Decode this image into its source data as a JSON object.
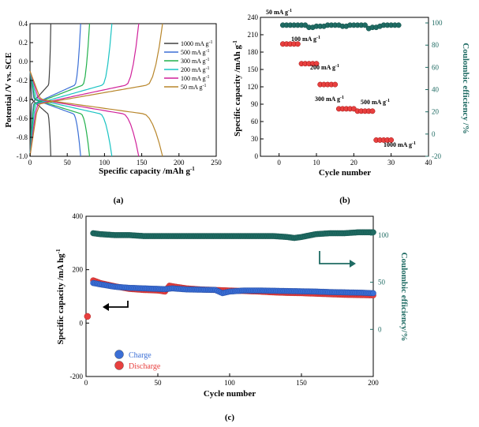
{
  "chart_data": [
    {
      "panel": "a",
      "panel_label": "(a)",
      "type": "line",
      "xlabel": "Specific capacity /mAh g",
      "xlabel_sup": "-1",
      "ylabel": "Potential /V vs. SCE",
      "xlim": [
        0,
        250
      ],
      "ylim": [
        -1.0,
        0.4
      ],
      "xticks": [
        0,
        50,
        100,
        150,
        200,
        250
      ],
      "yticks": [
        -1.0,
        -0.8,
        -0.6,
        -0.4,
        -0.2,
        0.0,
        0.2,
        0.4
      ],
      "legend_position": "right",
      "series": [
        {
          "name": "1000 mA g",
          "name_sup": "-1",
          "color": "#404040",
          "cap": 28
        },
        {
          "name": "500 mA g",
          "name_sup": "-1",
          "color": "#3b6fd6",
          "cap": 68
        },
        {
          "name": "300 mA g",
          "name_sup": "-1",
          "color": "#22b14c",
          "cap": 80
        },
        {
          "name": "200 mA g",
          "name_sup": "-1",
          "color": "#19c3c3",
          "cap": 110
        },
        {
          "name": "100 mA g",
          "name_sup": "-1",
          "color": "#d0219a",
          "cap": 146
        },
        {
          "name": "50 mA g",
          "name_sup": "-1",
          "color": "#b8862b",
          "cap": 178
        }
      ]
    },
    {
      "panel": "b",
      "panel_label": "(b)",
      "type": "scatter",
      "xlabel": "Cycle number",
      "ylabel": "Specific capacity /mAh g",
      "ylabel_sup": "-1",
      "y2label": "Coulombic efficiency /%",
      "xlim": [
        -5,
        40
      ],
      "ylim": [
        0,
        240
      ],
      "y2lim": [
        -20,
        105
      ],
      "xticks": [
        0,
        10,
        20,
        30,
        40
      ],
      "yticks": [
        0,
        30,
        60,
        90,
        120,
        150,
        180,
        210,
        240
      ],
      "y2ticks": [
        -20,
        0,
        20,
        40,
        60,
        80,
        100
      ],
      "capacity_groups": [
        {
          "label": "50 mA g",
          "label_sup": "-1",
          "cycles": [
            1,
            2,
            3,
            4,
            5
          ],
          "value": 194
        },
        {
          "label": "100 mA g",
          "label_sup": "-1",
          "cycles": [
            6,
            7,
            8,
            9,
            10
          ],
          "value": 160
        },
        {
          "label": "200 mA g",
          "label_sup": "-1",
          "cycles": [
            11,
            12,
            13,
            14,
            15
          ],
          "value": 124
        },
        {
          "label": "300 mA g",
          "label_sup": "-1",
          "cycles": [
            16,
            17,
            18,
            19,
            20
          ],
          "value": 82
        },
        {
          "label": "500 mA g",
          "label_sup": "-1",
          "cycles": [
            21,
            22,
            23,
            24,
            25
          ],
          "value": 78
        },
        {
          "label": "1000 mA g",
          "label_sup": "-1",
          "cycles": [
            26,
            27,
            28,
            29,
            30
          ],
          "value": 28
        }
      ],
      "efficiency": {
        "cycles": [
          1,
          2,
          3,
          4,
          5,
          6,
          7,
          8,
          9,
          10,
          11,
          12,
          13,
          14,
          15,
          16,
          17,
          18,
          19,
          20,
          21,
          22,
          23,
          24,
          25,
          26,
          27,
          28,
          29,
          30,
          31,
          32
        ],
        "values": [
          98,
          98,
          98,
          98,
          98,
          98,
          98,
          96,
          96,
          97,
          97,
          97,
          98,
          98,
          98,
          98,
          97,
          97,
          98,
          98,
          98,
          98,
          98,
          95,
          96,
          96,
          97,
          98,
          98,
          98,
          98,
          98
        ]
      }
    },
    {
      "panel": "c",
      "panel_label": "(c)",
      "type": "scatter",
      "xlabel": "Cycle number",
      "ylabel": "Specific capacity /mA hg",
      "ylabel_sup": "-1",
      "y2label": "Coulombic efficiency/%",
      "xlim": [
        0,
        200
      ],
      "ylim": [
        -200,
        400
      ],
      "y2lim": [
        -50,
        120
      ],
      "xticks": [
        0,
        50,
        100,
        150,
        200
      ],
      "yticks": [
        -200,
        0,
        200,
        400
      ],
      "y2ticks": [
        0,
        50,
        100
      ],
      "legend": [
        {
          "name": "Charge",
          "color": "#3b6fd6"
        },
        {
          "name": "Discharge",
          "color": "#e8403f"
        }
      ],
      "charge_points": [
        [
          5,
          150
        ],
        [
          10,
          145
        ],
        [
          20,
          136
        ],
        [
          30,
          132
        ],
        [
          40,
          130
        ],
        [
          50,
          128
        ],
        [
          55,
          127
        ],
        [
          60,
          130
        ],
        [
          70,
          126
        ],
        [
          80,
          125
        ],
        [
          90,
          124
        ],
        [
          95,
          112
        ],
        [
          100,
          118
        ],
        [
          110,
          122
        ],
        [
          120,
          122
        ],
        [
          130,
          121
        ],
        [
          140,
          120
        ],
        [
          150,
          119
        ],
        [
          160,
          118
        ],
        [
          170,
          116
        ],
        [
          180,
          115
        ],
        [
          190,
          114
        ],
        [
          200,
          112
        ]
      ],
      "discharge_points": [
        [
          1,
          25
        ],
        [
          5,
          160
        ],
        [
          10,
          150
        ],
        [
          20,
          138
        ],
        [
          30,
          128
        ],
        [
          40,
          124
        ],
        [
          50,
          122
        ],
        [
          55,
          118
        ],
        [
          58,
          140
        ],
        [
          60,
          138
        ],
        [
          70,
          130
        ],
        [
          80,
          126
        ],
        [
          90,
          124
        ],
        [
          100,
          122
        ],
        [
          110,
          120
        ],
        [
          120,
          118
        ],
        [
          130,
          115
        ],
        [
          140,
          113
        ],
        [
          150,
          112
        ],
        [
          160,
          110
        ],
        [
          170,
          108
        ],
        [
          180,
          106
        ],
        [
          190,
          105
        ],
        [
          200,
          104
        ]
      ],
      "efficiency_points": [
        [
          5,
          102
        ],
        [
          10,
          101
        ],
        [
          20,
          100
        ],
        [
          30,
          100
        ],
        [
          40,
          99
        ],
        [
          50,
          99
        ],
        [
          60,
          99
        ],
        [
          70,
          99
        ],
        [
          80,
          99
        ],
        [
          90,
          99
        ],
        [
          100,
          99
        ],
        [
          110,
          99
        ],
        [
          120,
          99
        ],
        [
          130,
          99
        ],
        [
          140,
          98
        ],
        [
          145,
          97
        ],
        [
          150,
          98
        ],
        [
          160,
          101
        ],
        [
          170,
          102
        ],
        [
          180,
          102
        ],
        [
          190,
          103
        ],
        [
          200,
          103
        ]
      ]
    }
  ]
}
